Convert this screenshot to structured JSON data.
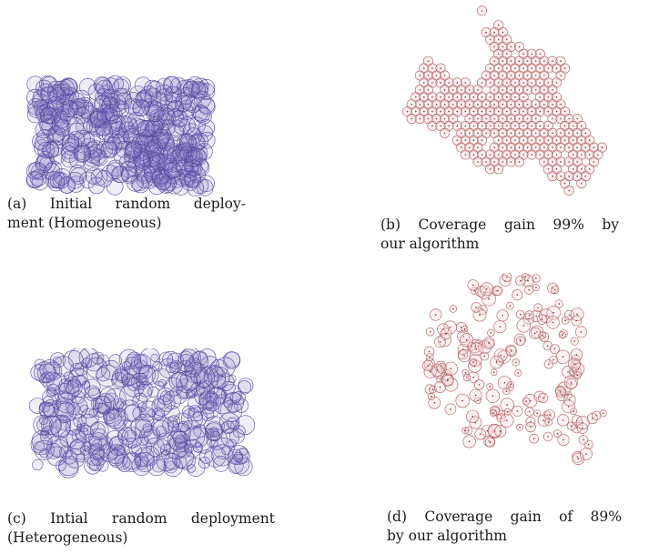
{
  "figure": {
    "panels": [
      {
        "id": "a",
        "caption_line1": "(a) Initial random deploy-",
        "caption_line2": "ment (Homogeneous)",
        "style": "blue-homogeneous"
      },
      {
        "id": "b",
        "caption_line1": "(b) Coverage gain 99% by",
        "caption_line2": "our algorithm",
        "style": "red-hex-tiling"
      },
      {
        "id": "c",
        "caption_line1": "(c) Intial random deployment",
        "caption_line2": "(Heterogeneous)",
        "style": "blue-heterogeneous"
      },
      {
        "id": "d",
        "caption_line1": "(d) Coverage gain of 89%",
        "caption_line2": "by our algorithm",
        "style": "red-chain"
      }
    ],
    "colors": {
      "blue_stroke": "#5a4b9e",
      "blue_fill": "#7a6cc0",
      "red_stroke": "#b05a5a",
      "red_center": "#8a2a2a"
    }
  }
}
